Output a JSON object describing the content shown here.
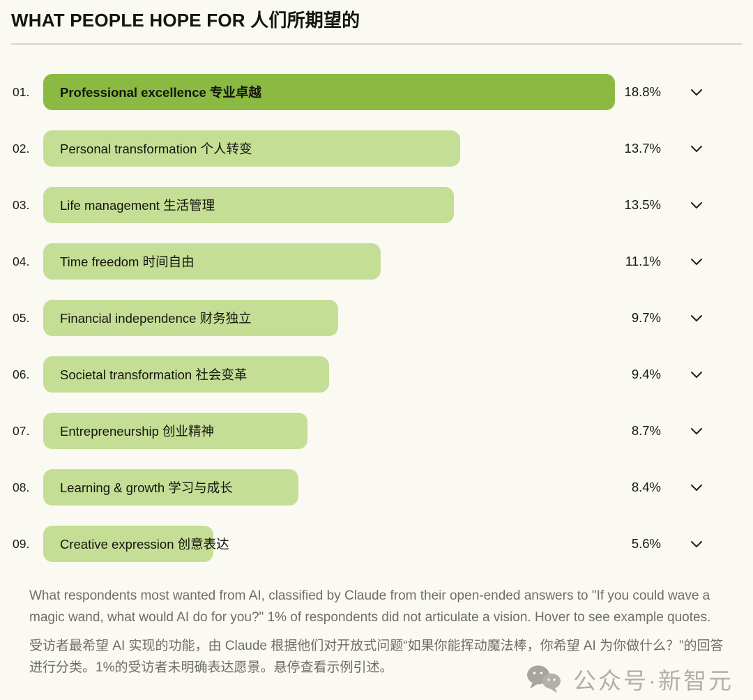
{
  "title": "WHAT PEOPLE HOPE FOR 人们所期望的",
  "chart_data": {
    "type": "bar",
    "orientation": "horizontal",
    "title": "WHAT PEOPLE HOPE FOR 人们所期望的",
    "categories": [
      "Professional excellence 专业卓越",
      "Personal transformation 个人转变",
      "Life management 生活管理",
      "Time freedom 时间自由",
      "Financial independence 财务独立",
      "Societal transformation 社会变革",
      "Entrepreneurship 创业精神",
      "Learning & growth 学习与成长",
      "Creative expression 创意表达"
    ],
    "values": [
      18.8,
      13.7,
      13.5,
      11.1,
      9.7,
      9.4,
      8.7,
      8.4,
      5.6
    ],
    "value_unit": "%",
    "xmax": 18.8,
    "highlighted_index": 0,
    "grid": false,
    "legend": false
  },
  "rows": [
    {
      "rank": "01.",
      "label": "Professional excellence 专业卓越",
      "value": "18.8%",
      "pct": 18.8,
      "highlighted": true
    },
    {
      "rank": "02.",
      "label": "Personal transformation 个人转变",
      "value": "13.7%",
      "pct": 13.7,
      "highlighted": false
    },
    {
      "rank": "03.",
      "label": "Life management 生活管理",
      "value": "13.5%",
      "pct": 13.5,
      "highlighted": false
    },
    {
      "rank": "04.",
      "label": "Time freedom 时间自由",
      "value": "11.1%",
      "pct": 11.1,
      "highlighted": false
    },
    {
      "rank": "05.",
      "label": "Financial independence 财务独立",
      "value": "9.7%",
      "pct": 9.7,
      "highlighted": false
    },
    {
      "rank": "06.",
      "label": "Societal transformation 社会变革",
      "value": "9.4%",
      "pct": 9.4,
      "highlighted": false
    },
    {
      "rank": "07.",
      "label": "Entrepreneurship 创业精神",
      "value": "8.7%",
      "pct": 8.7,
      "highlighted": false
    },
    {
      "rank": "08.",
      "label": "Learning & growth 学习与成长",
      "value": "8.4%",
      "pct": 8.4,
      "highlighted": false
    },
    {
      "rank": "09.",
      "label": "Creative expression 创意表达",
      "value": "5.6%",
      "pct": 5.6,
      "highlighted": false
    }
  ],
  "captions": {
    "english": "What respondents most wanted from AI, classified by Claude from their open-ended answers to \"If you could wave a magic wand, what would AI do for you?\" 1% of respondents did not articulate a vision. Hover to see example quotes.",
    "chinese": "受访者最希望 AI 实现的功能，由 Claude 根据他们对开放式问题“如果你能挥动魔法棒，你希望 AI 为你做什么？”的回答进行分类。1%的受访者未明确表达愿景。悬停查看示例引述。"
  },
  "watermark": {
    "text": "公众号·新智元",
    "icon": "wechat-bubbles-icon"
  },
  "colors": {
    "background": "#faf9f2",
    "bar_highlight": "#8aba41",
    "bar_default": "#c5de96",
    "text_dark": "#15150f",
    "caption_gray": "#6e6d66",
    "divider": "#d6d4cc",
    "watermark_gray": "#807e77"
  }
}
